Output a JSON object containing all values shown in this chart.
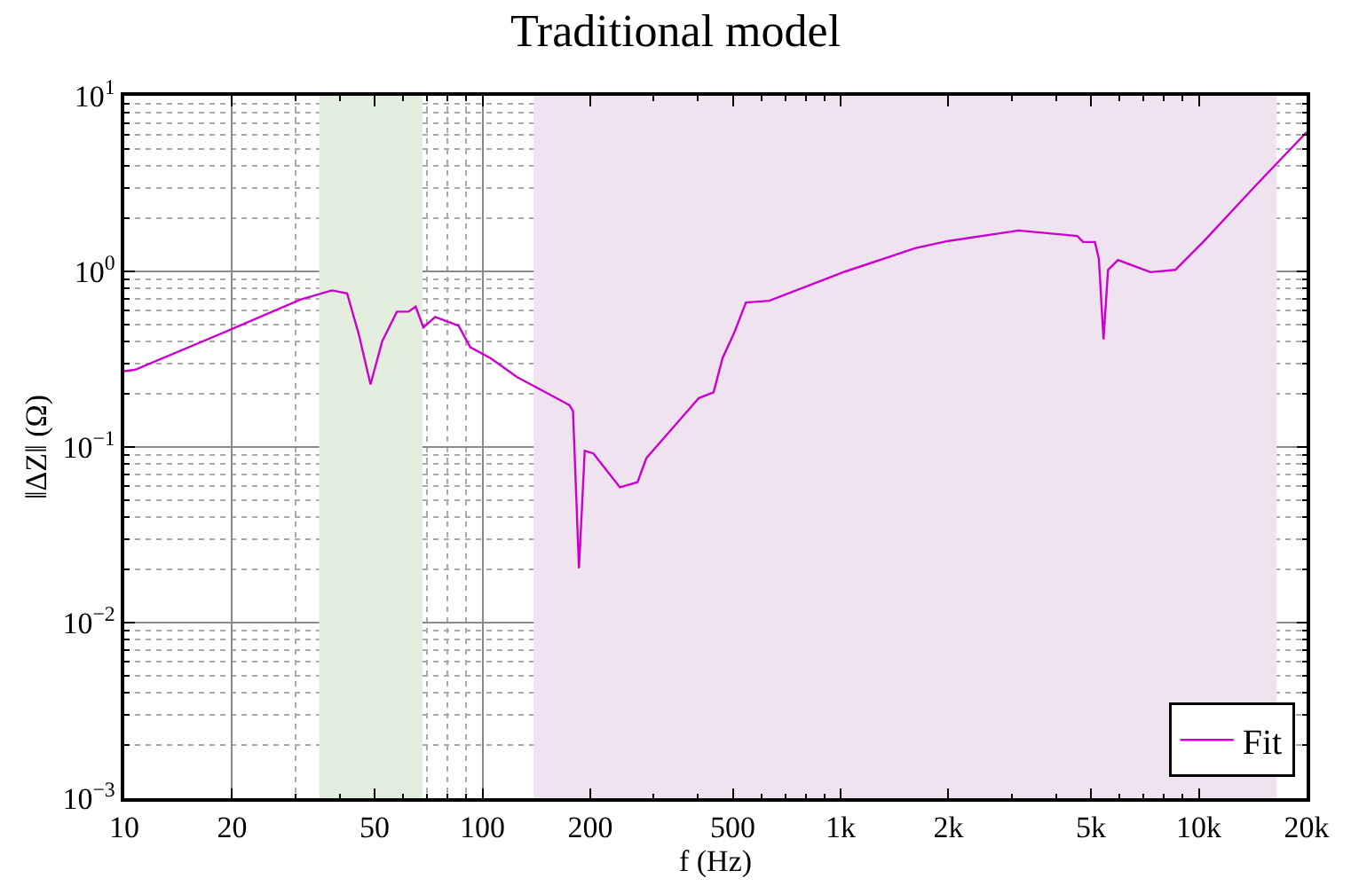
{
  "chart_data": {
    "type": "line",
    "title": "Traditional model",
    "xlabel": "f (Hz)",
    "ylabel": "‖ΔZ‖ (Ω)",
    "log": "xy",
    "grid": true,
    "legend": "bottom right",
    "marker": "none",
    "line_style": "solid",
    "xlim": [
      10,
      20000
    ],
    "ylim": [
      0.001,
      10
    ],
    "xticks": [
      {
        "value": 10,
        "label": "10"
      },
      {
        "value": 20,
        "label": "20"
      },
      {
        "value": 50,
        "label": "50"
      },
      {
        "value": 100,
        "label": "100"
      },
      {
        "value": 200,
        "label": "200"
      },
      {
        "value": 500,
        "label": "500"
      },
      {
        "value": 1000,
        "label": "1k"
      },
      {
        "value": 2000,
        "label": "2k"
      },
      {
        "value": 5000,
        "label": "5k"
      },
      {
        "value": 10000,
        "label": "10k"
      },
      {
        "value": 20000,
        "label": "20k"
      }
    ],
    "yticks": [
      {
        "value": 0.001,
        "label": "10$^{−3}$"
      },
      {
        "value": 0.01,
        "label": "10$^{−2}$"
      },
      {
        "value": 0.1,
        "label": "10$^{−1}$"
      },
      {
        "value": 1,
        "label": "10$^{0}$"
      },
      {
        "value": 10,
        "label": "10$^{1}$"
      }
    ],
    "bands": [
      {
        "axis": "x",
        "from": 35,
        "to": 68,
        "label": null,
        "color": "#e3eedf"
      },
      {
        "axis": "x",
        "from": 139,
        "to": 16500,
        "label": null,
        "color": "#eee3ef"
      }
    ],
    "series": [
      {
        "name": "Fit",
        "color": "#cc00cc",
        "x": [
          10,
          10.7,
          20,
          31,
          38,
          41.9,
          45.2,
          48.7,
          52.5,
          57.7,
          62.2,
          65.1,
          68.4,
          73.8,
          85.8,
          92.5,
          105.5,
          125,
          169,
          175,
          179,
          186,
          193,
          204,
          242,
          271,
          287,
          402,
          442,
          468,
          505,
          544,
          632,
          1033,
          1622,
          2000,
          3140,
          4580,
          4755,
          5130,
          5260,
          5420,
          5580,
          5950,
          7330,
          8600,
          10280,
          14450,
          20000
        ],
        "values": [
          0.27,
          0.275,
          0.47,
          0.69,
          0.78,
          0.75,
          0.435,
          0.227,
          0.4,
          0.59,
          0.59,
          0.63,
          0.48,
          0.55,
          0.49,
          0.37,
          0.32,
          0.25,
          0.18,
          0.173,
          0.16,
          0.0204,
          0.095,
          0.092,
          0.059,
          0.063,
          0.0866,
          0.19,
          0.205,
          0.32,
          0.45,
          0.665,
          0.68,
          1.0,
          1.36,
          1.49,
          1.71,
          1.59,
          1.47,
          1.47,
          1.18,
          0.41,
          1.02,
          1.16,
          0.99,
          1.02,
          1.47,
          3.1,
          6.2
        ]
      }
    ]
  }
}
